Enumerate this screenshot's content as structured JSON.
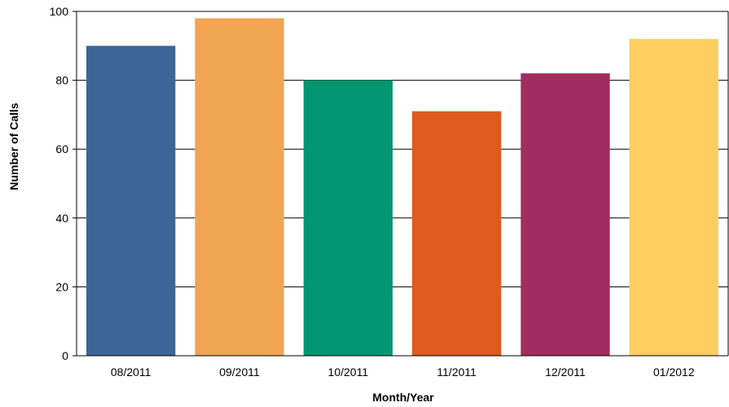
{
  "chart_data": {
    "type": "bar",
    "title": "",
    "xlabel": "Month/Year",
    "ylabel": "Number of Calls",
    "categories": [
      "08/2011",
      "09/2011",
      "10/2011",
      "11/2011",
      "12/2011",
      "01/2012"
    ],
    "values": [
      90,
      98,
      80,
      71,
      82,
      92
    ],
    "colors": [
      "#3d6596",
      "#efa553",
      "#009670",
      "#de5a1e",
      "#a02d60",
      "#fecd60"
    ],
    "ylim": [
      0,
      100
    ],
    "yticks": [
      0,
      20,
      40,
      60,
      80,
      100
    ],
    "grid": true,
    "legend": "none"
  }
}
